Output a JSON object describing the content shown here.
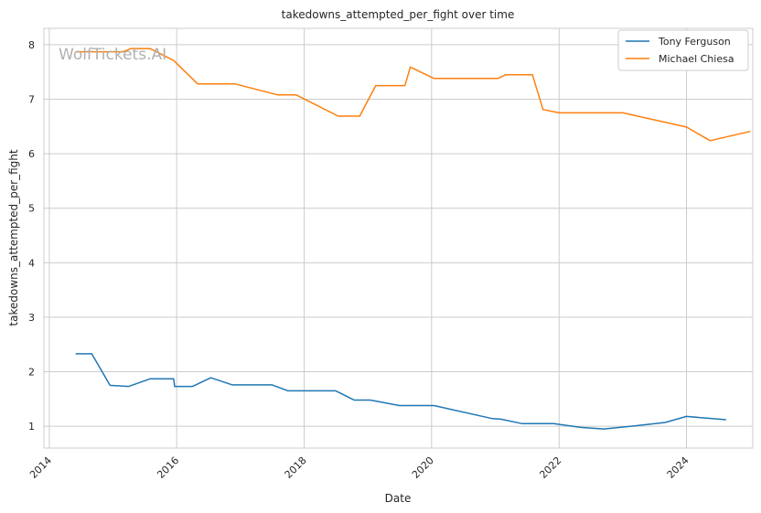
{
  "chart_data": {
    "type": "line",
    "title": "takedowns_attempted_per_fight over time",
    "xlabel": "Date",
    "ylabel": "takedowns_attempted_per_fight",
    "watermark": "WolfTickets.AI",
    "xlim": [
      "2013-12-01",
      "2025-01-15"
    ],
    "ylim": [
      0.6,
      8.3
    ],
    "x_ticks": [
      {
        "date": "2014-01-01",
        "label": "2014"
      },
      {
        "date": "2016-01-01",
        "label": "2016"
      },
      {
        "date": "2018-01-01",
        "label": "2018"
      },
      {
        "date": "2020-01-01",
        "label": "2020"
      },
      {
        "date": "2022-01-01",
        "label": "2022"
      },
      {
        "date": "2024-01-01",
        "label": "2024"
      }
    ],
    "y_ticks": [
      1,
      2,
      3,
      4,
      5,
      6,
      7,
      8
    ],
    "grid": true,
    "legend_position": "top-right",
    "series": [
      {
        "name": "Tony Ferguson",
        "color": "#1f77b4",
        "points": [
          [
            "2014-06-01",
            2.33
          ],
          [
            "2014-09-01",
            2.33
          ],
          [
            "2014-12-15",
            1.75
          ],
          [
            "2015-04-01",
            1.73
          ],
          [
            "2015-08-01",
            1.87
          ],
          [
            "2015-12-15",
            1.87
          ],
          [
            "2015-12-20",
            1.73
          ],
          [
            "2016-04-01",
            1.73
          ],
          [
            "2016-07-15",
            1.89
          ],
          [
            "2016-11-15",
            1.76
          ],
          [
            "2017-07-01",
            1.76
          ],
          [
            "2017-10-01",
            1.65
          ],
          [
            "2018-07-01",
            1.65
          ],
          [
            "2018-10-15",
            1.48
          ],
          [
            "2019-01-15",
            1.48
          ],
          [
            "2019-07-01",
            1.38
          ],
          [
            "2020-01-15",
            1.38
          ],
          [
            "2020-12-15",
            1.14
          ],
          [
            "2021-02-01",
            1.13
          ],
          [
            "2021-06-01",
            1.05
          ],
          [
            "2021-12-01",
            1.05
          ],
          [
            "2022-05-01",
            0.98
          ],
          [
            "2022-09-15",
            0.95
          ],
          [
            "2023-03-15",
            1.01
          ],
          [
            "2023-09-01",
            1.07
          ],
          [
            "2024-01-01",
            1.18
          ],
          [
            "2024-08-15",
            1.12
          ]
        ]
      },
      {
        "name": "Michael Chiesa",
        "color": "#ff7f0e",
        "points": [
          [
            "2014-06-01",
            7.87
          ],
          [
            "2014-10-01",
            7.87
          ],
          [
            "2015-03-01",
            7.87
          ],
          [
            "2015-04-15",
            7.93
          ],
          [
            "2015-08-01",
            7.93
          ],
          [
            "2015-12-15",
            7.71
          ],
          [
            "2016-05-01",
            7.28
          ],
          [
            "2016-12-01",
            7.28
          ],
          [
            "2017-08-01",
            7.08
          ],
          [
            "2017-11-15",
            7.08
          ],
          [
            "2018-07-15",
            6.69
          ],
          [
            "2018-11-15",
            6.69
          ],
          [
            "2019-02-15",
            7.25
          ],
          [
            "2019-08-01",
            7.25
          ],
          [
            "2019-09-01",
            7.59
          ],
          [
            "2020-01-15",
            7.38
          ],
          [
            "2021-01-15",
            7.38
          ],
          [
            "2021-03-01",
            7.45
          ],
          [
            "2021-08-01",
            7.45
          ],
          [
            "2021-10-01",
            6.81
          ],
          [
            "2022-01-01",
            6.75
          ],
          [
            "2023-01-01",
            6.75
          ],
          [
            "2024-01-01",
            6.49
          ],
          [
            "2024-05-15",
            6.24
          ],
          [
            "2025-01-01",
            6.41
          ]
        ]
      }
    ]
  }
}
